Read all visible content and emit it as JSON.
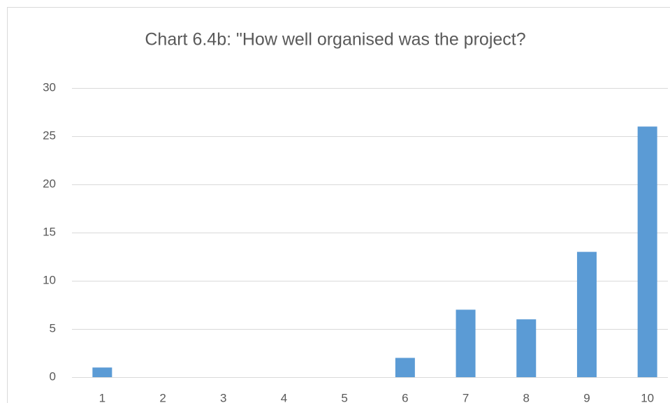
{
  "chart_data": {
    "type": "bar",
    "title": "Chart 6.4b: \"How well organised was the project?",
    "categories": [
      "1",
      "2",
      "3",
      "4",
      "5",
      "6",
      "7",
      "8",
      "9",
      "10"
    ],
    "values": [
      1,
      0,
      0,
      0,
      0,
      2,
      7,
      6,
      13,
      26
    ],
    "color": "#5b9bd5",
    "ylim": [
      0,
      30
    ],
    "yticks": [
      0,
      5,
      10,
      15,
      20,
      25,
      30
    ],
    "grid": true
  }
}
